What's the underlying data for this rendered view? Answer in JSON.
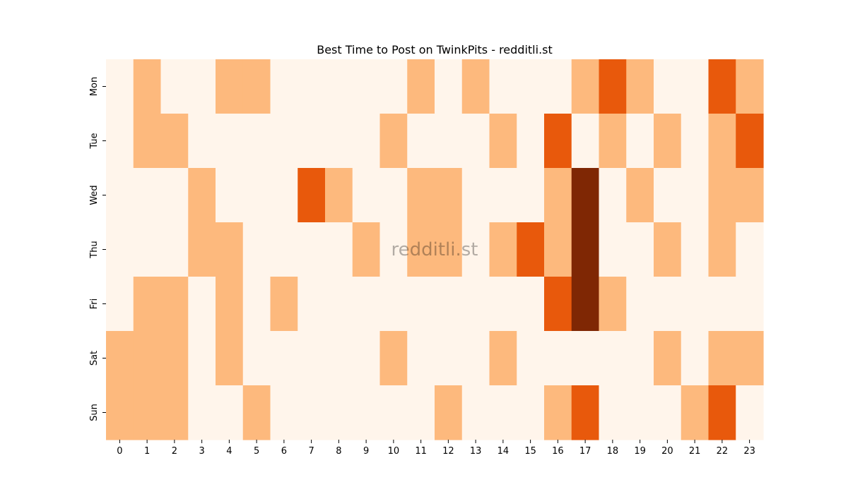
{
  "chart_data": {
    "type": "heatmap",
    "title": "Best Time to Post on TwinkPits - redditli.st",
    "xlabel": "",
    "ylabel": "",
    "x_categories": [
      "0",
      "1",
      "2",
      "3",
      "4",
      "5",
      "6",
      "7",
      "8",
      "9",
      "10",
      "11",
      "12",
      "13",
      "14",
      "15",
      "16",
      "17",
      "18",
      "19",
      "20",
      "21",
      "22",
      "23"
    ],
    "y_categories": [
      "Mon",
      "Tue",
      "Wed",
      "Thu",
      "Fri",
      "Sat",
      "Sun"
    ],
    "values": [
      [
        0,
        1,
        0,
        0,
        1,
        1,
        0,
        0,
        0,
        0,
        0,
        1,
        0,
        1,
        0,
        0,
        0,
        1,
        2,
        1,
        0,
        0,
        2,
        1
      ],
      [
        0,
        1,
        1,
        0,
        0,
        0,
        0,
        0,
        0,
        0,
        1,
        0,
        0,
        0,
        1,
        0,
        2,
        0,
        1,
        0,
        1,
        0,
        1,
        2
      ],
      [
        0,
        0,
        0,
        1,
        0,
        0,
        0,
        2,
        1,
        0,
        0,
        1,
        1,
        0,
        0,
        0,
        1,
        3,
        0,
        1,
        0,
        0,
        1,
        1
      ],
      [
        0,
        0,
        0,
        1,
        1,
        0,
        0,
        0,
        0,
        1,
        0,
        1,
        1,
        0,
        1,
        2,
        1,
        3,
        0,
        0,
        1,
        0,
        1,
        0
      ],
      [
        0,
        1,
        1,
        0,
        1,
        0,
        1,
        0,
        0,
        0,
        0,
        0,
        0,
        0,
        0,
        0,
        2,
        3,
        1,
        0,
        0,
        0,
        0,
        0
      ],
      [
        1,
        1,
        1,
        0,
        1,
        0,
        0,
        0,
        0,
        0,
        1,
        0,
        0,
        0,
        1,
        0,
        0,
        0,
        0,
        0,
        1,
        0,
        1,
        1
      ],
      [
        1,
        1,
        1,
        0,
        0,
        1,
        0,
        0,
        0,
        0,
        0,
        0,
        1,
        0,
        0,
        0,
        1,
        2,
        0,
        0,
        0,
        1,
        2,
        0
      ]
    ],
    "colorscale": "Oranges",
    "colors": [
      "#fff5eb",
      "#fdb97d",
      "#e8590c",
      "#7f2704"
    ],
    "colorbar": false,
    "watermark": "redditli.st"
  }
}
